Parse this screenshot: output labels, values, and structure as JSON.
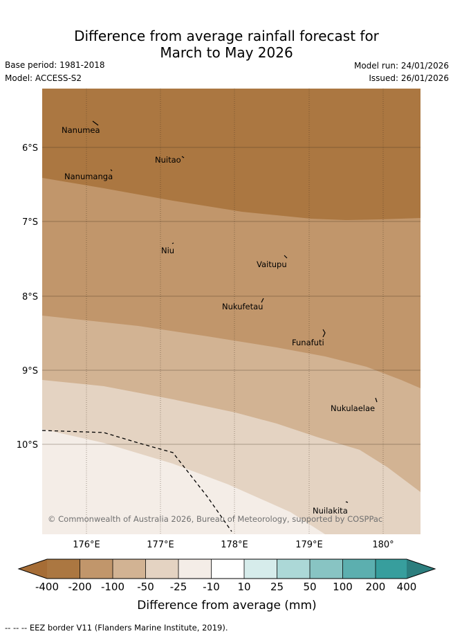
{
  "header": {
    "title_line1": "Difference from average rainfall forecast for",
    "title_line2": "March to May 2026",
    "base_period": "Base period: 1981-2018",
    "model": "Model: ACCESS-S2",
    "model_run": "Model run: 24/01/2026",
    "issued": "Issued: 26/01/2026"
  },
  "map": {
    "lat_labels": [
      "6°S",
      "7°S",
      "8°S",
      "9°S",
      "10°S"
    ],
    "lon_labels": [
      "176°E",
      "177°E",
      "178°E",
      "179°E",
      "180°"
    ],
    "places": [
      {
        "name": "Nanumea",
        "id": "nanumea"
      },
      {
        "name": "Nuitao",
        "id": "nuitao"
      },
      {
        "name": "Nanumanga",
        "id": "nanumanga"
      },
      {
        "name": "Niu",
        "id": "niu"
      },
      {
        "name": "Vaitupu",
        "id": "vaitupu"
      },
      {
        "name": "Nukufetau",
        "id": "nukufetau"
      },
      {
        "name": "Funafuti",
        "id": "funafuti"
      },
      {
        "name": "Nukulaelae",
        "id": "nukulaelae"
      },
      {
        "name": "Nuilakita",
        "id": "nuilakita"
      }
    ],
    "copyright": "© Commonwealth of Australia 2026, Bureau of Meteorology, supported by COSPPac"
  },
  "colorbar": {
    "ticks": [
      "-400",
      "-200",
      "-100",
      "-50",
      "-25",
      "-10",
      "10",
      "25",
      "50",
      "100",
      "200",
      "400"
    ],
    "colors": [
      "#a66d36",
      "#ab7741",
      "#c1966b",
      "#d2b393",
      "#e4d3c2",
      "#f4ede7",
      "#ffffff",
      "#d6eceb",
      "#acd8d7",
      "#88c4c3",
      "#5cafaf",
      "#379e9d",
      "#2c7e7e"
    ],
    "title": "Difference from average (mm)"
  },
  "footer": {
    "legend": "--  --  -- EEZ border V11 (Flanders Marine Institute, 2019)."
  }
}
